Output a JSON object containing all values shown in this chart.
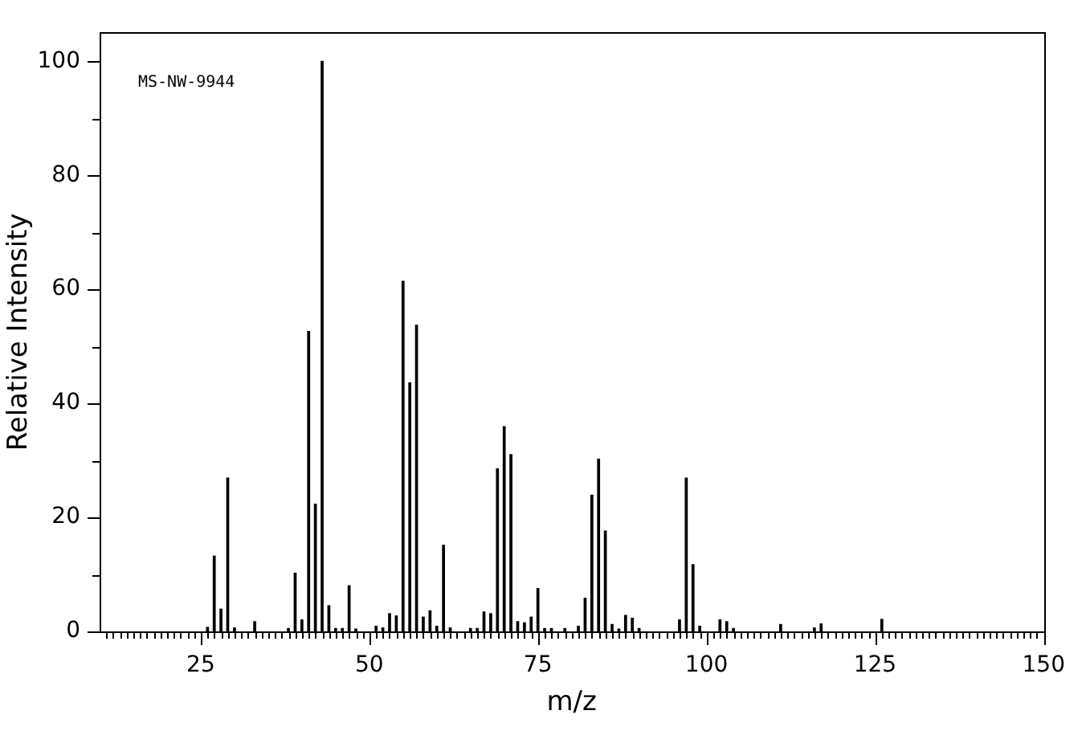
{
  "chart_data": {
    "type": "bar",
    "xlabel": "m/z",
    "ylabel": "Relative Intensity",
    "annotations": [
      "MS-NW-9944"
    ],
    "x": [
      26,
      27,
      28,
      29,
      30,
      33,
      38,
      39,
      40,
      41,
      42,
      43,
      44,
      45,
      46,
      47,
      48,
      51,
      52,
      53,
      54,
      55,
      56,
      57,
      58,
      59,
      60,
      61,
      62,
      65,
      66,
      67,
      68,
      69,
      70,
      71,
      72,
      73,
      74,
      75,
      76,
      77,
      79,
      81,
      82,
      83,
      84,
      85,
      86,
      87,
      88,
      89,
      90,
      96,
      97,
      98,
      99,
      102,
      103,
      104,
      111,
      116,
      117,
      126
    ],
    "values": [
      0.7,
      13.2,
      3.9,
      26.9,
      0.6,
      1.7,
      0.5,
      10.2,
      2.0,
      52.6,
      22.3,
      100,
      4.5,
      0.5,
      0.5,
      8.0,
      0.4,
      0.9,
      0.6,
      3.1,
      2.7,
      61.4,
      43.6,
      53.7,
      2.5,
      3.6,
      0.9,
      15.1,
      0.6,
      0.5,
      0.5,
      3.4,
      3.1,
      28.5,
      35.9,
      31.0,
      1.7,
      1.5,
      2.5,
      7.5,
      0.5,
      0.5,
      0.5,
      0.9,
      5.8,
      23.9,
      30.2,
      17.6,
      1.2,
      0.4,
      2.8,
      2.3,
      0.5,
      2.0,
      26.9,
      11.7,
      0.9,
      2.0,
      1.7,
      0.5,
      1.2,
      0.6,
      1.3,
      2.1
    ],
    "color": "#000000",
    "xlim": [
      10,
      150
    ],
    "ylim": [
      0,
      105
    ],
    "xticks": [
      {
        "value": 11,
        "label": null
      },
      {
        "value": 12,
        "label": null
      },
      {
        "value": 13,
        "label": null
      },
      {
        "value": 14,
        "label": null
      },
      {
        "value": 15,
        "label": null
      },
      {
        "value": 16,
        "label": null
      },
      {
        "value": 17,
        "label": null
      },
      {
        "value": 18,
        "label": null
      },
      {
        "value": 19,
        "label": null
      },
      {
        "value": 20,
        "label": null
      },
      {
        "value": 21,
        "label": null
      },
      {
        "value": 22,
        "label": null
      },
      {
        "value": 23,
        "label": null
      },
      {
        "value": 24,
        "label": null
      },
      25,
      {
        "value": 26,
        "label": null
      },
      {
        "value": 27,
        "label": null
      },
      {
        "value": 28,
        "label": null
      },
      {
        "value": 29,
        "label": null
      },
      {
        "value": 30,
        "label": null
      },
      {
        "value": 31,
        "label": null
      },
      {
        "value": 32,
        "label": null
      },
      {
        "value": 33,
        "label": null
      },
      {
        "value": 34,
        "label": null
      },
      {
        "value": 35,
        "label": null
      },
      {
        "value": 36,
        "label": null
      },
      {
        "value": 37,
        "label": null
      },
      {
        "value": 38,
        "label": null
      },
      {
        "value": 39,
        "label": null
      },
      {
        "value": 40,
        "label": null
      },
      {
        "value": 41,
        "label": null
      },
      {
        "value": 42,
        "label": null
      },
      {
        "value": 43,
        "label": null
      },
      {
        "value": 44,
        "label": null
      },
      {
        "value": 45,
        "label": null
      },
      {
        "value": 46,
        "label": null
      },
      {
        "value": 47,
        "label": null
      },
      {
        "value": 48,
        "label": null
      },
      {
        "value": 49,
        "label": null
      },
      50,
      {
        "value": 51,
        "label": null
      },
      {
        "value": 52,
        "label": null
      },
      {
        "value": 53,
        "label": null
      },
      {
        "value": 54,
        "label": null
      },
      {
        "value": 55,
        "label": null
      },
      {
        "value": 56,
        "label": null
      },
      {
        "value": 57,
        "label": null
      },
      {
        "value": 58,
        "label": null
      },
      {
        "value": 59,
        "label": null
      },
      {
        "value": 60,
        "label": null
      },
      {
        "value": 61,
        "label": null
      },
      {
        "value": 62,
        "label": null
      },
      {
        "value": 63,
        "label": null
      },
      {
        "value": 64,
        "label": null
      },
      {
        "value": 65,
        "label": null
      },
      {
        "value": 66,
        "label": null
      },
      {
        "value": 67,
        "label": null
      },
      {
        "value": 68,
        "label": null
      },
      {
        "value": 69,
        "label": null
      },
      {
        "value": 70,
        "label": null
      },
      {
        "value": 71,
        "label": null
      },
      {
        "value": 72,
        "label": null
      },
      {
        "value": 73,
        "label": null
      },
      {
        "value": 74,
        "label": null
      },
      75,
      {
        "value": 76,
        "label": null
      },
      {
        "value": 77,
        "label": null
      },
      {
        "value": 78,
        "label": null
      },
      {
        "value": 79,
        "label": null
      },
      {
        "value": 80,
        "label": null
      },
      {
        "value": 81,
        "label": null
      },
      {
        "value": 82,
        "label": null
      },
      {
        "value": 83,
        "label": null
      },
      {
        "value": 84,
        "label": null
      },
      {
        "value": 85,
        "label": null
      },
      {
        "value": 86,
        "label": null
      },
      {
        "value": 87,
        "label": null
      },
      {
        "value": 88,
        "label": null
      },
      {
        "value": 89,
        "label": null
      },
      {
        "value": 90,
        "label": null
      },
      {
        "value": 91,
        "label": null
      },
      {
        "value": 92,
        "label": null
      },
      {
        "value": 93,
        "label": null
      },
      {
        "value": 94,
        "label": null
      },
      {
        "value": 95,
        "label": null
      },
      {
        "value": 96,
        "label": null
      },
      {
        "value": 97,
        "label": null
      },
      {
        "value": 98,
        "label": null
      },
      {
        "value": 99,
        "label": null
      },
      100,
      {
        "value": 101,
        "label": null
      },
      {
        "value": 102,
        "label": null
      },
      {
        "value": 103,
        "label": null
      },
      {
        "value": 104,
        "label": null
      },
      {
        "value": 105,
        "label": null
      },
      {
        "value": 106,
        "label": null
      },
      {
        "value": 107,
        "label": null
      },
      {
        "value": 108,
        "label": null
      },
      {
        "value": 109,
        "label": null
      },
      {
        "value": 110,
        "label": null
      },
      {
        "value": 111,
        "label": null
      },
      {
        "value": 112,
        "label": null
      },
      {
        "value": 113,
        "label": null
      },
      {
        "value": 114,
        "label": null
      },
      {
        "value": 115,
        "label": null
      },
      {
        "value": 116,
        "label": null
      },
      {
        "value": 117,
        "label": null
      },
      {
        "value": 118,
        "label": null
      },
      {
        "value": 119,
        "label": null
      },
      {
        "value": 120,
        "label": null
      },
      {
        "value": 121,
        "label": null
      },
      {
        "value": 122,
        "label": null
      },
      {
        "value": 123,
        "label": null
      },
      {
        "value": 124,
        "label": null
      },
      125,
      {
        "value": 126,
        "label": null
      },
      {
        "value": 127,
        "label": null
      },
      {
        "value": 128,
        "label": null
      },
      {
        "value": 129,
        "label": null
      },
      {
        "value": 130,
        "label": null
      },
      {
        "value": 131,
        "label": null
      },
      {
        "value": 132,
        "label": null
      },
      {
        "value": 133,
        "label": null
      },
      {
        "value": 134,
        "label": null
      },
      {
        "value": 135,
        "label": null
      },
      {
        "value": 136,
        "label": null
      },
      {
        "value": 137,
        "label": null
      },
      {
        "value": 138,
        "label": null
      },
      {
        "value": 139,
        "label": null
      },
      {
        "value": 140,
        "label": null
      },
      {
        "value": 141,
        "label": null
      },
      {
        "value": 142,
        "label": null
      },
      {
        "value": 143,
        "label": null
      },
      {
        "value": 144,
        "label": null
      },
      {
        "value": 145,
        "label": null
      },
      {
        "value": 146,
        "label": null
      },
      {
        "value": 147,
        "label": null
      },
      {
        "value": 148,
        "label": null
      },
      {
        "value": 149,
        "label": null
      },
      150
    ],
    "yticks": [
      0,
      {
        "value": 10,
        "label": null
      },
      20,
      {
        "value": 30,
        "label": null
      },
      40,
      {
        "value": 50,
        "label": null
      },
      60,
      {
        "value": 70,
        "label": null
      },
      80,
      {
        "value": 90,
        "label": null
      },
      100
    ],
    "grid": false,
    "legend": false
  }
}
